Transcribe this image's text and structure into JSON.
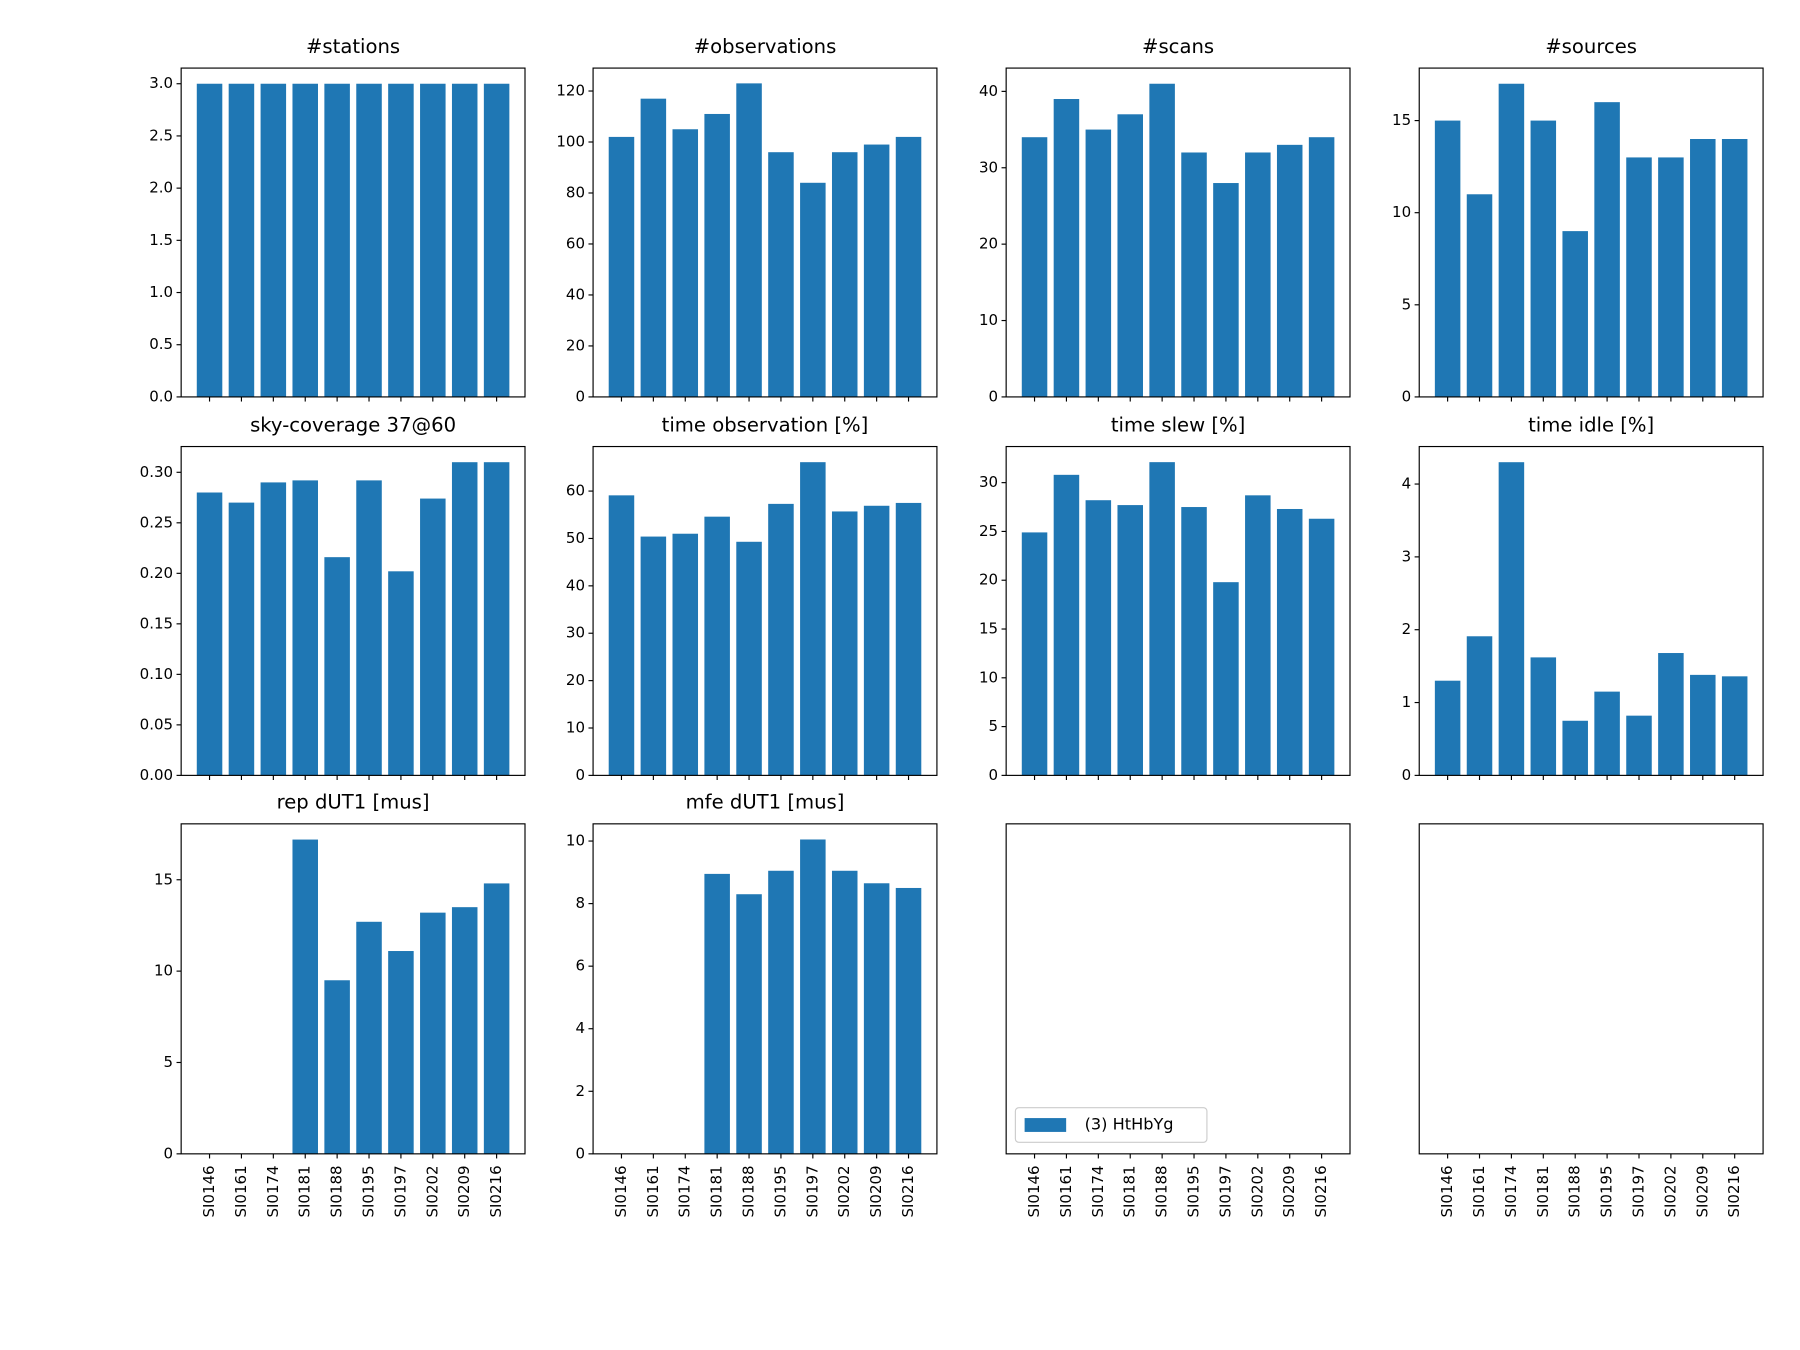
{
  "categories": [
    "SI0146",
    "SI0161",
    "SI0174",
    "SI0181",
    "SI0188",
    "SI0195",
    "SI0197",
    "SI0202",
    "SI0209",
    "SI0216"
  ],
  "legend": {
    "name": "(3) HtHbYg",
    "color": "#1f77b4",
    "position": "lower left"
  },
  "chart_data": [
    {
      "type": "bar",
      "title": "#stations",
      "color": "#1f77b4",
      "values": [
        3,
        3,
        3,
        3,
        3,
        3,
        3,
        3,
        3,
        3
      ],
      "ylim": [
        0,
        3.15
      ],
      "yticks": [
        {
          "value": 0,
          "label": "0.0"
        },
        {
          "value": 0.5,
          "label": "0.5"
        },
        {
          "value": 1,
          "label": "1.0"
        },
        {
          "value": 1.5,
          "label": "1.5"
        },
        {
          "value": 2,
          "label": "2.0"
        },
        {
          "value": 2.5,
          "label": "2.5"
        },
        {
          "value": 3,
          "label": "3.0"
        }
      ]
    },
    {
      "type": "bar",
      "title": "#observations",
      "color": "#1f77b4",
      "values": [
        102,
        117,
        105,
        111,
        123,
        96,
        84,
        96,
        99,
        102
      ],
      "ylim": [
        0,
        129
      ],
      "yticks": [
        0,
        20,
        40,
        60,
        80,
        100,
        120
      ]
    },
    {
      "type": "bar",
      "title": "#scans",
      "color": "#1f77b4",
      "values": [
        34,
        39,
        35,
        37,
        41,
        32,
        28,
        32,
        33,
        34
      ],
      "ylim": [
        0,
        43.05
      ],
      "yticks": [
        0,
        10,
        20,
        30,
        40
      ]
    },
    {
      "type": "bar",
      "title": "#sources",
      "color": "#1f77b4",
      "values": [
        15,
        11,
        17,
        15,
        9,
        16,
        13,
        13,
        14,
        14
      ],
      "ylim": [
        0,
        17.85
      ],
      "yticks": [
        0,
        5,
        10,
        15
      ]
    },
    {
      "type": "bar",
      "title": "sky-coverage 37@60",
      "color": "#1f77b4",
      "values": [
        0.28,
        0.27,
        0.29,
        0.292,
        0.216,
        0.292,
        0.202,
        0.274,
        0.31,
        0.31
      ],
      "ylim": [
        0,
        0.3255
      ],
      "yticks": [
        {
          "value": 0,
          "label": "0.00"
        },
        {
          "value": 0.05,
          "label": "0.05"
        },
        {
          "value": 0.1,
          "label": "0.10"
        },
        {
          "value": 0.15,
          "label": "0.15"
        },
        {
          "value": 0.2,
          "label": "0.20"
        },
        {
          "value": 0.25,
          "label": "0.25"
        },
        {
          "value": 0.3,
          "label": "0.30"
        }
      ]
    },
    {
      "type": "bar",
      "title": "time observation [%]",
      "color": "#1f77b4",
      "values": [
        59.1,
        50.4,
        51.0,
        54.6,
        49.3,
        57.3,
        66.1,
        55.7,
        56.9,
        57.5
      ],
      "ylim": [
        0,
        69.4
      ],
      "yticks": [
        0,
        10,
        20,
        30,
        40,
        50,
        60
      ]
    },
    {
      "type": "bar",
      "title": "time slew [%]",
      "color": "#1f77b4",
      "values": [
        24.9,
        30.8,
        28.2,
        27.7,
        32.1,
        27.5,
        19.8,
        28.7,
        27.3,
        26.3
      ],
      "ylim": [
        0,
        33.7
      ],
      "yticks": [
        0,
        5,
        10,
        15,
        20,
        25,
        30
      ]
    },
    {
      "type": "bar",
      "title": "time idle [%]",
      "color": "#1f77b4",
      "values": [
        1.3,
        1.91,
        4.3,
        1.62,
        0.75,
        1.15,
        0.82,
        1.68,
        1.38,
        1.36
      ],
      "ylim": [
        0,
        4.515
      ],
      "yticks": [
        0,
        1,
        2,
        3,
        4
      ]
    },
    {
      "type": "bar",
      "title": "rep dUT1 [mus]",
      "color": "#1f77b4",
      "values": [
        null,
        null,
        null,
        17.2,
        9.5,
        12.7,
        11.1,
        13.2,
        13.5,
        14.8
      ],
      "ylim": [
        0,
        18.06
      ],
      "yticks": [
        0,
        5,
        10,
        15
      ]
    },
    {
      "type": "bar",
      "title": "mfe dUT1 [mus]",
      "color": "#1f77b4",
      "values": [
        null,
        null,
        null,
        8.95,
        8.3,
        9.05,
        10.05,
        9.05,
        8.65,
        8.5
      ],
      "ylim": [
        0,
        10.55
      ],
      "yticks": [
        0,
        2,
        4,
        6,
        8,
        10
      ]
    }
  ]
}
